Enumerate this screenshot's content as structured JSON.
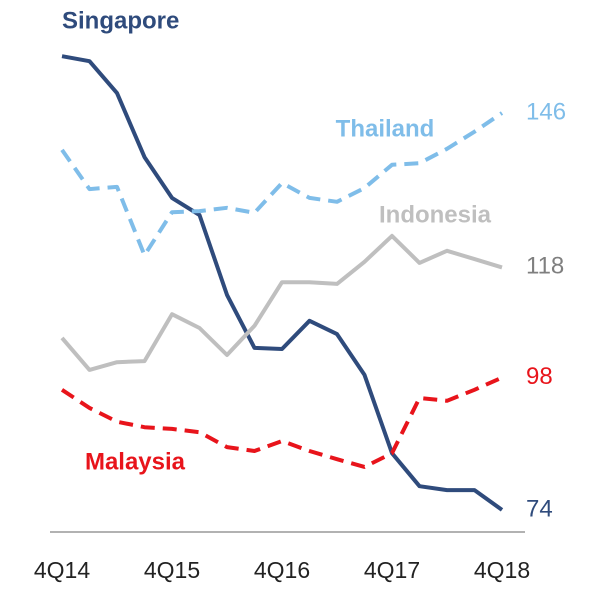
{
  "chart_data": {
    "type": "line",
    "categories": [
      "4Q14",
      null,
      null,
      null,
      "4Q15",
      null,
      null,
      null,
      "4Q16",
      null,
      null,
      null,
      "4Q17",
      null,
      null,
      null,
      "4Q18"
    ],
    "ylim": [
      70,
      160
    ],
    "series": [
      {
        "name": "Singapore",
        "color": "#2f4b7c",
        "style": "solid",
        "values": [
          156.3,
          155.4,
          149.6,
          138.0,
          130.6,
          127.5,
          113.0,
          103.4,
          103.2,
          108.3,
          105.9,
          98.5,
          84.3,
          78.3,
          77.6,
          77.6,
          74
        ]
      },
      {
        "name": "Thailand",
        "color": "#7fbde9",
        "style": "dashed",
        "values": [
          139.3,
          132.2,
          132.6,
          120.2,
          128.0,
          128.2,
          128.8,
          127.9,
          133.3,
          130.6,
          129.9,
          132.4,
          136.6,
          136.9,
          139.5,
          142.6,
          146
        ]
      },
      {
        "name": "Indonesia",
        "color": "#bfbfbf",
        "style": "solid",
        "values": [
          105.2,
          99.4,
          100.8,
          101.0,
          109.5,
          107.0,
          102.1,
          107.4,
          115.3,
          115.3,
          115.0,
          119.0,
          123.7,
          118.8,
          121.0,
          119.5,
          118
        ]
      },
      {
        "name": "Malaysia",
        "color": "#e8141b",
        "style": "dashed",
        "values": [
          95.8,
          92.5,
          90.0,
          89.0,
          88.7,
          88.1,
          85.4,
          84.7,
          86.5,
          84.7,
          83.2,
          81.8,
          84.3,
          94.3,
          93.8,
          95.8,
          98
        ]
      }
    ]
  }
}
